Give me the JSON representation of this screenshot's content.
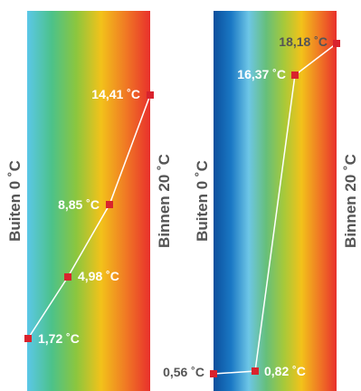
{
  "panels": [
    {
      "id": "left",
      "left_label": "Buiten 0 ˚C",
      "right_label": "Binnen 20 ˚C",
      "gradient": [
        "#5bc7e8",
        "#4cc28a",
        "#8cc63e",
        "#f2c21a",
        "#f07a24",
        "#e8302c"
      ],
      "points": [
        {
          "text": "1,72 ˚C",
          "text_color": "#ffffff"
        },
        {
          "text": "4,98 ˚C",
          "text_color": "#ffffff"
        },
        {
          "text": "8,85 ˚C",
          "text_color": "#ffffff"
        },
        {
          "text": "14,41 ˚C",
          "text_color": "#ffffff"
        }
      ]
    },
    {
      "id": "right",
      "left_label": "Buiten 0 ˚C",
      "right_label": "Binnen 20 ˚C",
      "gradient": [
        "#0b4f9c",
        "#1a78c4",
        "#6dc6e6",
        "#66bf7a",
        "#a6c93a",
        "#f2c21a",
        "#f07a24",
        "#e8302c"
      ],
      "points": [
        {
          "text": "0,56 ˚C",
          "text_color": "#555555"
        },
        {
          "text": "0,82 ˚C",
          "text_color": "#ffffff"
        },
        {
          "text": "16,37 ˚C",
          "text_color": "#ffffff"
        },
        {
          "text": "18,18 ˚C",
          "text_color": "#555555"
        }
      ]
    }
  ],
  "colors": {
    "marker": "#d9232d",
    "line": "#ffffff",
    "axis_text": "#555555"
  }
}
